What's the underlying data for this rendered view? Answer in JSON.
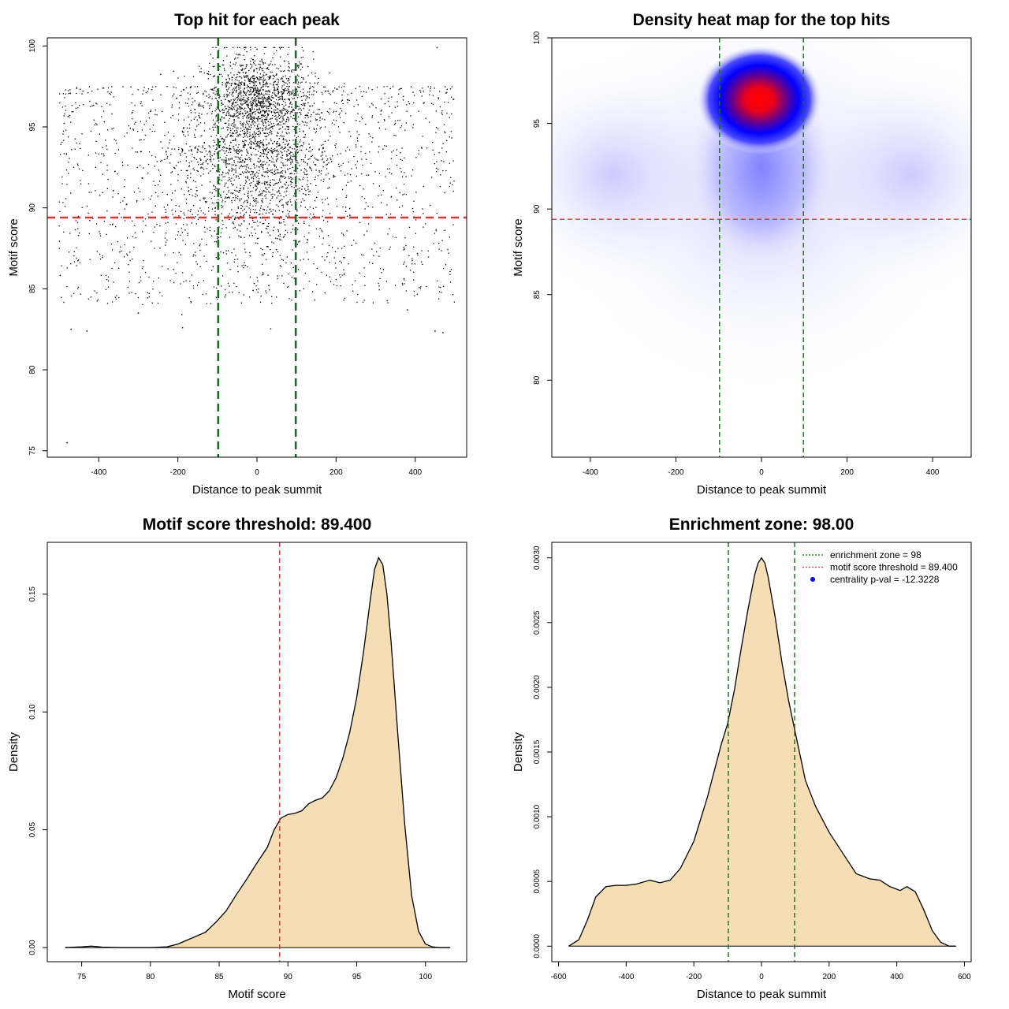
{
  "chart_data": [
    {
      "type": "scatter",
      "title": "Top hit for each peak",
      "xlabel": "Distance to peak summit",
      "ylabel": "Motif score",
      "xlim": [
        -530,
        530
      ],
      "ylim": [
        74.6,
        100.5
      ],
      "xticks": [
        -400,
        -200,
        0,
        200,
        400
      ],
      "yticks": [
        75,
        80,
        85,
        90,
        95,
        100
      ],
      "point_color": "#000000",
      "point_count_approx": 4000,
      "sample_points": {
        "x": [
          -480,
          455,
          470,
          -470,
          -430,
          -300,
          -190,
          380,
          -100,
          0,
          -10,
          30,
          450
        ],
        "y": [
          75.5,
          99.9,
          82.3,
          82.5,
          82.4,
          83.5,
          83.4,
          83.7,
          99.3,
          99.8,
          84.9,
          85.2,
          82.4
        ]
      },
      "vlines": [
        {
          "x": -98,
          "color": "#1a6b1a",
          "style": "dashed"
        },
        {
          "x": 98,
          "color": "#1a6b1a",
          "style": "dashed"
        }
      ],
      "hlines": [
        {
          "y": 89.4,
          "color": "#e03030",
          "style": "dashed"
        }
      ]
    },
    {
      "type": "heatmap",
      "title": "Density heat map for the top hits",
      "xlabel": "Distance to peak summit",
      "ylabel": "Motif score",
      "xlim": [
        -490,
        490
      ],
      "ylim": [
        75.5,
        100
      ],
      "xticks": [
        -400,
        -200,
        0,
        200,
        400
      ],
      "yticks": [
        80,
        85,
        90,
        95,
        100
      ],
      "colors": [
        "#ffffff",
        "#0000ff",
        "#ff0000"
      ],
      "peak": {
        "x": -5,
        "y": 96.4
      },
      "vlines": [
        {
          "x": -98,
          "color": "#1a6b1a",
          "style": "dashed"
        },
        {
          "x": 98,
          "color": "#1a6b1a",
          "style": "dashed"
        }
      ],
      "hlines": [
        {
          "y": 89.4,
          "color": "#e03030",
          "style": "dashed"
        }
      ]
    },
    {
      "type": "area",
      "title": "Motif score threshold: 89.400",
      "xlabel": "Motif score",
      "ylabel": "Density",
      "xlim": [
        72.5,
        103
      ],
      "ylim": [
        -0.006,
        0.172
      ],
      "xticks": [
        75,
        80,
        85,
        90,
        95,
        100
      ],
      "yticks": [
        0.0,
        0.05,
        0.1,
        0.15
      ],
      "ytick_labels": [
        "0.00",
        "0.05",
        "0.10",
        "0.15"
      ],
      "fill": "#f5deb3",
      "series": [
        {
          "x": [
            73.8,
            75.0,
            75.7,
            76.5,
            78,
            80,
            81.2,
            82,
            83,
            84,
            84.8,
            85.5,
            86.2,
            87,
            87.7,
            88.5,
            89,
            89.5,
            90,
            90.5,
            91,
            91.5,
            92,
            92.5,
            93,
            93.5,
            94,
            94.5,
            95,
            95.5,
            96,
            96.3,
            96.6,
            96.9,
            97.2,
            97.5,
            98,
            98.5,
            99,
            99.5,
            100,
            100.5,
            101,
            101.8
          ],
          "y": [
            0.0,
            0.0003,
            0.0006,
            0.0002,
            0.0,
            0.0,
            0.0003,
            0.0015,
            0.004,
            0.0065,
            0.011,
            0.0155,
            0.022,
            0.029,
            0.0355,
            0.0425,
            0.05,
            0.055,
            0.0565,
            0.057,
            0.058,
            0.061,
            0.0625,
            0.0635,
            0.0665,
            0.072,
            0.0805,
            0.0915,
            0.106,
            0.1255,
            0.148,
            0.1605,
            0.1655,
            0.1625,
            0.15,
            0.13,
            0.09,
            0.052,
            0.022,
            0.007,
            0.0015,
            0.0003,
            0.0,
            0.0
          ]
        }
      ],
      "vlines": [
        {
          "x": 89.4,
          "color": "#e03030",
          "style": "dashed"
        }
      ]
    },
    {
      "type": "area",
      "title": "Enrichment zone: 98.00",
      "xlabel": "Distance to peak summit",
      "ylabel": "Density",
      "xlim": [
        -620,
        620
      ],
      "ylim": [
        -0.00012,
        0.00312
      ],
      "xticks": [
        -600,
        -400,
        -200,
        0,
        200,
        400,
        600
      ],
      "yticks": [
        0.0,
        0.0005,
        0.001,
        0.0015,
        0.002,
        0.0025,
        0.003
      ],
      "ytick_labels": [
        "0.0000",
        "0.0005",
        "0.0010",
        "0.0015",
        "0.0020",
        "0.0025",
        "0.0030"
      ],
      "fill": "#f5deb3",
      "series": [
        {
          "x": [
            -570,
            -540,
            -515,
            -490,
            -460,
            -430,
            -400,
            -370,
            -330,
            -300,
            -270,
            -240,
            -200,
            -160,
            -120,
            -100,
            -80,
            -60,
            -40,
            -20,
            -10,
            0,
            10,
            20,
            40,
            60,
            80,
            100,
            130,
            160,
            200,
            240,
            280,
            320,
            350,
            380,
            410,
            430,
            455,
            480,
            505,
            530,
            555,
            575
          ],
          "y": [
            0.0,
            5e-05,
            0.0002,
            0.00038,
            0.00046,
            0.00047,
            0.00047,
            0.00048,
            0.00051,
            0.00049,
            0.00051,
            0.0006,
            0.00081,
            0.00115,
            0.00155,
            0.00172,
            0.00198,
            0.0023,
            0.0026,
            0.00287,
            0.00296,
            0.003,
            0.00296,
            0.00285,
            0.00255,
            0.0022,
            0.0019,
            0.00165,
            0.00128,
            0.00108,
            0.00088,
            0.00072,
            0.00056,
            0.00052,
            0.00051,
            0.00046,
            0.00043,
            0.00046,
            0.00042,
            0.00028,
            0.00012,
            3e-05,
            0.0,
            0.0
          ]
        }
      ],
      "vlines": [
        {
          "x": -98,
          "color": "#1a6b1a",
          "style": "dashed"
        },
        {
          "x": 98,
          "color": "#1a6b1a",
          "style": "dashed"
        }
      ],
      "legend": [
        {
          "label": "enrichment zone = 98",
          "symbol": "line",
          "color": "#1a6b1a"
        },
        {
          "label": "motif score threshold = 89.400",
          "symbol": "line",
          "color": "#e03030"
        },
        {
          "label": "centrality p-val = -12.3228",
          "symbol": "dot",
          "color": "#0000ff"
        }
      ],
      "legend_position": "top-right"
    }
  ]
}
